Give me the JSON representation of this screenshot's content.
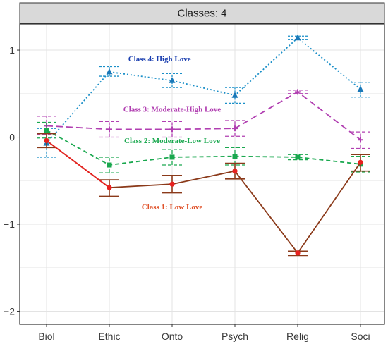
{
  "chart_data": {
    "type": "line",
    "facet_title": "Classes: 4",
    "categories": [
      "Biol",
      "Ethic",
      "Onto",
      "Psych",
      "Relig",
      "Soci"
    ],
    "ylim": [
      -2.15,
      1.3
    ],
    "yticks": [
      -2,
      -1,
      0,
      1
    ],
    "ytick_labels": [
      "−2",
      "−1",
      "0",
      "1"
    ],
    "grid": true,
    "series": [
      {
        "name": "Class 1: Low Love",
        "color": "#e8211f",
        "line_color": "#8b3a1a",
        "errorbar_color": "#8b3a1a",
        "dash": "solid",
        "marker": "circle",
        "values": [
          -0.04,
          -0.58,
          -0.54,
          -0.39,
          -1.33,
          -0.29
        ],
        "lower": [
          -0.12,
          -0.68,
          -0.64,
          -0.48,
          -1.36,
          -0.39
        ],
        "upper": [
          0.04,
          -0.49,
          -0.44,
          -0.3,
          -1.31,
          -0.2
        ]
      },
      {
        "name": "Class 2: Moderate-Low Love",
        "color": "#1aa84f",
        "line_color": "#1aa84f",
        "errorbar_color": "#1aa84f",
        "dash": "dashed",
        "marker": "square",
        "values": [
          0.08,
          -0.32,
          -0.23,
          -0.22,
          -0.23,
          -0.31
        ],
        "lower": [
          -0.01,
          -0.41,
          -0.32,
          -0.32,
          -0.26,
          -0.4
        ],
        "upper": [
          0.17,
          -0.23,
          -0.14,
          -0.12,
          -0.2,
          -0.22
        ]
      },
      {
        "name": "Class 3: Moderate-High Love",
        "color": "#b13fb1",
        "line_color": "#b13fb1",
        "errorbar_color": "#b13fb1",
        "dash": "longdash",
        "marker": "plus",
        "values": [
          0.13,
          0.09,
          0.09,
          0.1,
          0.52,
          -0.03
        ],
        "lower": [
          0.03,
          0.0,
          0.0,
          0.01,
          0.5,
          -0.13
        ],
        "upper": [
          0.24,
          0.18,
          0.18,
          0.19,
          0.54,
          0.06
        ]
      },
      {
        "name": "Class 4: High Love",
        "color": "#1a78b8",
        "line_color": "#1a8fc8",
        "errorbar_color": "#1a8fc8",
        "dash": "dotted",
        "marker": "triangle",
        "values": [
          -0.07,
          0.75,
          0.65,
          0.48,
          1.14,
          0.55
        ],
        "lower": [
          -0.23,
          0.7,
          0.57,
          0.39,
          1.12,
          0.46
        ],
        "upper": [
          0.1,
          0.81,
          0.73,
          0.57,
          1.16,
          0.63
        ]
      }
    ],
    "annotations": [
      {
        "text": "Class 4:  High Love",
        "color": "#1b3fb0",
        "at_category": 1.8,
        "at_value": 0.87
      },
      {
        "text": "Class 3: Moderate-High Love",
        "color": "#b13fb1",
        "at_category": 2.0,
        "at_value": 0.29
      },
      {
        "text": "Class 2: Moderate-Low Love",
        "color": "#1aa84f",
        "at_category": 2.0,
        "at_value": -0.07
      },
      {
        "text": "Class 1: Low Love",
        "color": "#e0522a",
        "at_category": 2.0,
        "at_value": -0.83
      }
    ],
    "colors": {
      "panel_background": "#ffffff",
      "grid": "#e3e3e3",
      "strip_background": "#d9d9d9",
      "border": "#333333"
    }
  }
}
